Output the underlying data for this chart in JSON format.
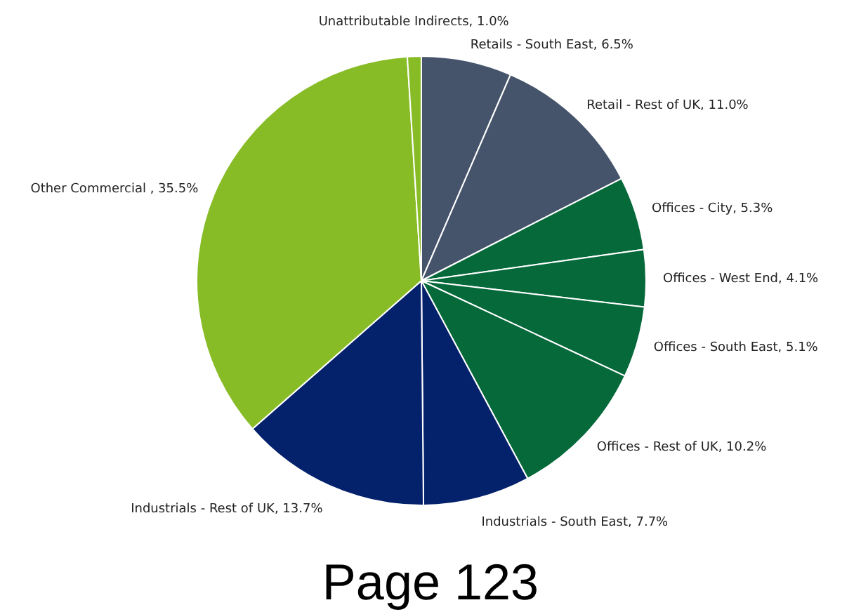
{
  "chart_data": {
    "type": "pie",
    "categories": [
      "Retails - South East",
      "Retail - Rest of UK",
      "Offices - City",
      "Offices - West End",
      "Offices - South East",
      "Offices - Rest of UK",
      "Industrials - South East",
      "Industrials - Rest of UK",
      "Other Commercial ",
      "Unattributable Indirects"
    ],
    "values": [
      6.5,
      11.0,
      5.3,
      4.1,
      5.1,
      10.2,
      7.7,
      13.7,
      35.5,
      1.0
    ],
    "colors": [
      "#45546b",
      "#45546b",
      "#05693a",
      "#05693a",
      "#05693a",
      "#05693a",
      "#04216b",
      "#04216b",
      "#88bc27",
      "#88bc27"
    ],
    "value_labels": [
      "6.5%",
      "11.0%",
      "5.3%",
      "4.1%",
      "5.1%",
      "10.2%",
      "7.7%",
      "13.7%",
      "35.5%",
      "1.0%"
    ],
    "annotations": [
      "Page 123"
    ]
  }
}
